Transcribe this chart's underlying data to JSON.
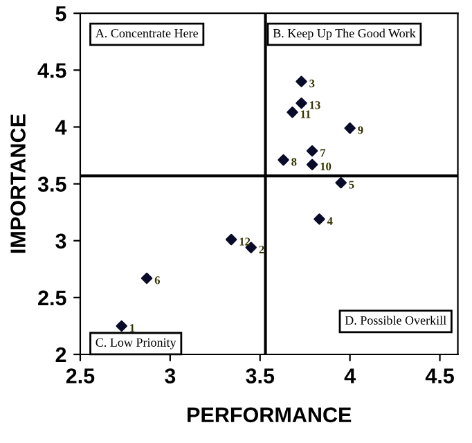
{
  "chart_data": {
    "type": "scatter",
    "xlabel": "PERFORMANCE",
    "ylabel": "IMPORTANCE",
    "series": [
      {
        "color": "#0a0a2a",
        "x": [
          2.73,
          3.45,
          3.73,
          3.83,
          3.95,
          2.87,
          3.79,
          3.63,
          4.0,
          3.79,
          3.68,
          3.34,
          3.73
        ],
        "values": [
          2.25,
          2.94,
          4.4,
          3.19,
          3.51,
          2.67,
          3.79,
          3.71,
          3.99,
          3.67,
          4.13,
          3.01,
          4.21
        ]
      }
    ],
    "marker": "diamond",
    "xlim": [
      2.5,
      4.6
    ],
    "ylim": [
      2,
      5
    ],
    "xticks": [
      2.5,
      3,
      3.5,
      4,
      4.5
    ],
    "yticks": [
      2,
      2.5,
      3,
      3.5,
      4,
      4.5,
      5
    ],
    "grid": false,
    "legend": false,
    "ref_lines": [
      {
        "axis": "x",
        "value": 3.53,
        "color": "#000000"
      },
      {
        "axis": "y",
        "value": 3.57,
        "color": "#000000"
      }
    ],
    "annotations": [
      "A. Concentrate Here",
      "B. Keep Up The Good Work",
      "C. Low Prionity",
      "D. Possible Overkill",
      {
        "text": "1",
        "x": 2.73,
        "y": 2.25
      },
      {
        "text": "2",
        "x": 3.45,
        "y": 2.94
      },
      {
        "text": "3",
        "x": 3.73,
        "y": 4.4
      },
      {
        "text": "4",
        "x": 3.83,
        "y": 3.19
      },
      {
        "text": "5",
        "x": 3.95,
        "y": 3.51
      },
      {
        "text": "6",
        "x": 2.87,
        "y": 2.67
      },
      {
        "text": "7",
        "x": 3.79,
        "y": 3.79
      },
      {
        "text": "8",
        "x": 3.63,
        "y": 3.71
      },
      {
        "text": "9",
        "x": 4.0,
        "y": 3.99
      },
      {
        "text": "10",
        "x": 3.79,
        "y": 3.67
      },
      {
        "text": "11",
        "x": 3.68,
        "y": 4.13
      },
      {
        "text": "12",
        "x": 3.34,
        "y": 3.01
      },
      {
        "text": "13",
        "x": 3.73,
        "y": 4.21
      }
    ]
  }
}
